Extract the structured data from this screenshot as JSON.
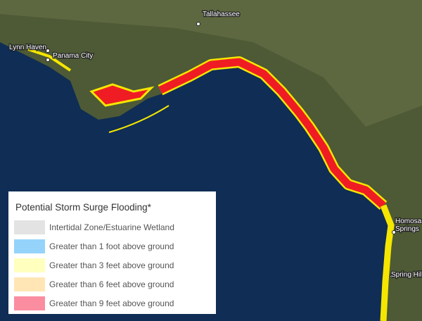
{
  "places": [
    {
      "lines": [
        "Tallahassee"
      ]
    },
    {
      "lines": [
        "Lynn Haven"
      ]
    },
    {
      "lines": [
        "Panama City"
      ]
    },
    {
      "lines": [
        "Homosassa",
        "Springs"
      ]
    },
    {
      "lines": [
        "Spring Hill"
      ]
    }
  ],
  "legend": {
    "title": "Potential Storm Surge Flooding*",
    "items": [
      {
        "label": "Intertidal Zone/Estuarine Wetland",
        "color": "#e3e3e3"
      },
      {
        "label": "Greater than 1 foot above ground",
        "color": "#95d3fb"
      },
      {
        "label": "Greater than 3 feet above ground",
        "color": "#ffffbe"
      },
      {
        "label": "Greater than 6 feet above ground",
        "color": "#ffe6b4"
      },
      {
        "label": "Greater than 9 feet above ground",
        "color": "#fb8da1"
      }
    ]
  }
}
